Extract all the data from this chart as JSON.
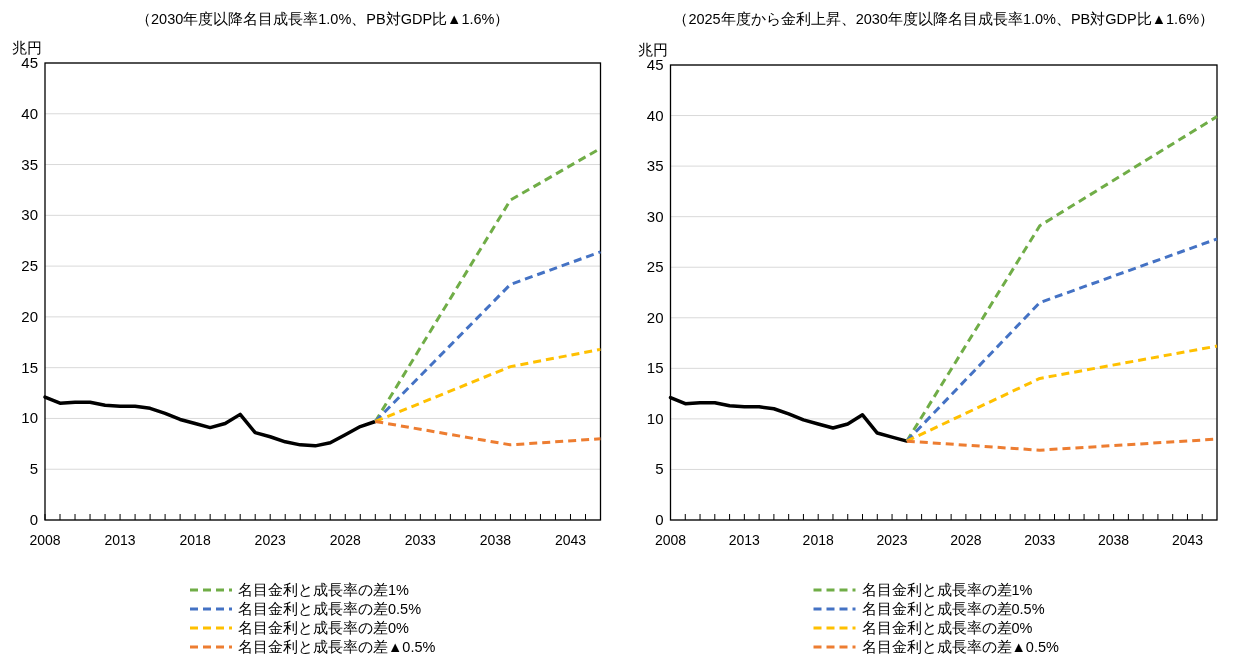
{
  "chart_data": [
    {
      "type": "line",
      "title": "（2030年度以降名目成長率1.0%、PB対GDP比▲1.6%）",
      "ylabel": "兆円",
      "xlim": [
        2008,
        2045
      ],
      "ylim": [
        0,
        45
      ],
      "xticks": [
        2008,
        {
          "value": 2009,
          "label": null
        },
        {
          "value": 2010,
          "label": null
        },
        {
          "value": 2011,
          "label": null
        },
        {
          "value": 2012,
          "label": null
        },
        2013,
        {
          "value": 2014,
          "label": null
        },
        {
          "value": 2015,
          "label": null
        },
        {
          "value": 2016,
          "label": null
        },
        {
          "value": 2017,
          "label": null
        },
        2018,
        {
          "value": 2019,
          "label": null
        },
        {
          "value": 2020,
          "label": null
        },
        {
          "value": 2021,
          "label": null
        },
        {
          "value": 2022,
          "label": null
        },
        2023,
        {
          "value": 2024,
          "label": null
        },
        {
          "value": 2025,
          "label": null
        },
        {
          "value": 2026,
          "label": null
        },
        {
          "value": 2027,
          "label": null
        },
        2028,
        {
          "value": 2029,
          "label": null
        },
        {
          "value": 2030,
          "label": null
        },
        {
          "value": 2031,
          "label": null
        },
        {
          "value": 2032,
          "label": null
        },
        2033,
        {
          "value": 2034,
          "label": null
        },
        {
          "value": 2035,
          "label": null
        },
        {
          "value": 2036,
          "label": null
        },
        {
          "value": 2037,
          "label": null
        },
        2038,
        {
          "value": 2039,
          "label": null
        },
        {
          "value": 2040,
          "label": null
        },
        {
          "value": 2041,
          "label": null
        },
        {
          "value": 2042,
          "label": null
        },
        2043,
        {
          "value": 2044,
          "label": null
        }
      ],
      "yticks": [
        0,
        5,
        10,
        15,
        20,
        25,
        30,
        35,
        40,
        45
      ],
      "grid": "y",
      "legend": "bottom",
      "series": [
        {
          "color": "#000000",
          "line_style": "solid",
          "x": [
            2008,
            2009,
            2010,
            2011,
            2012,
            2013,
            2014,
            2015,
            2016,
            2017,
            2018,
            2019,
            2020,
            2021,
            2022,
            2023,
            2024,
            2025,
            2026,
            2027,
            2028,
            2029,
            2030
          ],
          "values": [
            12.1,
            11.5,
            11.6,
            11.6,
            11.3,
            11.2,
            11.2,
            11.0,
            10.5,
            9.9,
            9.5,
            9.1,
            9.5,
            10.4,
            8.6,
            8.2,
            7.7,
            7.4,
            7.3,
            7.6,
            8.4,
            9.2,
            9.7
          ]
        },
        {
          "name": "名目金利と成長率の差1%",
          "color": "#70ad47",
          "line_style": "dashed",
          "x": [
            2030,
            2039,
            2045
          ],
          "values": [
            9.7,
            31.5,
            36.6
          ]
        },
        {
          "name": "名目金利と成長率の差0.5%",
          "color": "#4472c4",
          "line_style": "dashed",
          "x": [
            2030,
            2039,
            2045
          ],
          "values": [
            9.7,
            23.2,
            26.4
          ]
        },
        {
          "name": "名目金利と成長率の差0%",
          "color": "#ffc000",
          "line_style": "dashed",
          "x": [
            2030,
            2039,
            2045
          ],
          "values": [
            9.7,
            15.1,
            16.8
          ]
        },
        {
          "name": "名目金利と成長率の差▲0.5%",
          "color": "#ed7d31",
          "line_style": "dashed",
          "x": [
            2030,
            2039,
            2045
          ],
          "values": [
            9.7,
            7.4,
            8.0
          ]
        }
      ]
    },
    {
      "type": "line",
      "title": "（2025年度から金利上昇、2030年度以降名目成長率1.0%、PB対GDP比▲1.6%）",
      "ylabel": "兆円",
      "xlim": [
        2008,
        2045
      ],
      "ylim": [
        0,
        45
      ],
      "xticks": [
        2008,
        {
          "value": 2009,
          "label": null
        },
        {
          "value": 2010,
          "label": null
        },
        {
          "value": 2011,
          "label": null
        },
        {
          "value": 2012,
          "label": null
        },
        2013,
        {
          "value": 2014,
          "label": null
        },
        {
          "value": 2015,
          "label": null
        },
        {
          "value": 2016,
          "label": null
        },
        {
          "value": 2017,
          "label": null
        },
        2018,
        {
          "value": 2019,
          "label": null
        },
        {
          "value": 2020,
          "label": null
        },
        {
          "value": 2021,
          "label": null
        },
        {
          "value": 2022,
          "label": null
        },
        2023,
        {
          "value": 2024,
          "label": null
        },
        {
          "value": 2025,
          "label": null
        },
        {
          "value": 2026,
          "label": null
        },
        {
          "value": 2027,
          "label": null
        },
        2028,
        {
          "value": 2029,
          "label": null
        },
        {
          "value": 2030,
          "label": null
        },
        {
          "value": 2031,
          "label": null
        },
        {
          "value": 2032,
          "label": null
        },
        2033,
        {
          "value": 2034,
          "label": null
        },
        {
          "value": 2035,
          "label": null
        },
        {
          "value": 2036,
          "label": null
        },
        {
          "value": 2037,
          "label": null
        },
        2038,
        {
          "value": 2039,
          "label": null
        },
        {
          "value": 2040,
          "label": null
        },
        {
          "value": 2041,
          "label": null
        },
        {
          "value": 2042,
          "label": null
        },
        2043,
        {
          "value": 2044,
          "label": null
        }
      ],
      "yticks": [
        0,
        5,
        10,
        15,
        20,
        25,
        30,
        35,
        40,
        45
      ],
      "grid": "y",
      "legend": "bottom",
      "series": [
        {
          "color": "#000000",
          "line_style": "solid",
          "x": [
            2008,
            2009,
            2010,
            2011,
            2012,
            2013,
            2014,
            2015,
            2016,
            2017,
            2018,
            2019,
            2020,
            2021,
            2022,
            2023,
            2024
          ],
          "values": [
            12.1,
            11.5,
            11.6,
            11.6,
            11.3,
            11.2,
            11.2,
            11.0,
            10.5,
            9.9,
            9.5,
            9.1,
            9.5,
            10.4,
            8.6,
            8.2,
            7.8
          ]
        },
        {
          "name": "名目金利と成長率の差1%",
          "color": "#70ad47",
          "line_style": "dashed",
          "x": [
            2024,
            2033,
            2045
          ],
          "values": [
            7.8,
            29.1,
            39.9
          ]
        },
        {
          "name": "名目金利と成長率の差0.5%",
          "color": "#4472c4",
          "line_style": "dashed",
          "x": [
            2024,
            2033,
            2045
          ],
          "values": [
            7.8,
            21.5,
            27.8
          ]
        },
        {
          "name": "名目金利と成長率の差0%",
          "color": "#ffc000",
          "line_style": "dashed",
          "x": [
            2024,
            2033,
            2045
          ],
          "values": [
            7.8,
            14.0,
            17.2
          ]
        },
        {
          "name": "名目金利と成長率の差▲0.5%",
          "color": "#ed7d31",
          "line_style": "dashed",
          "x": [
            2024,
            2033,
            2045
          ],
          "values": [
            7.8,
            6.9,
            8.0
          ]
        }
      ]
    }
  ]
}
